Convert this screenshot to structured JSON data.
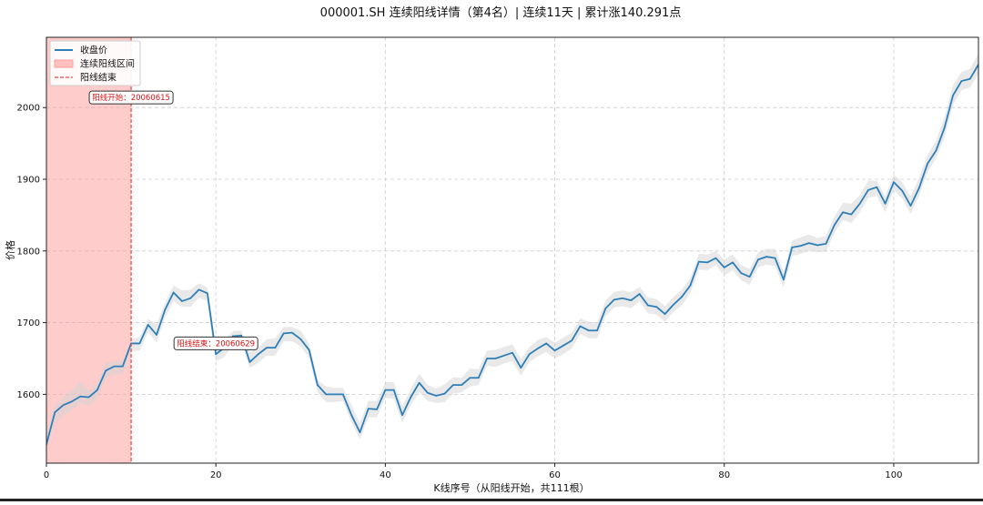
{
  "chart_data": {
    "type": "line",
    "title": "000001.SH 连续阳线详情（第4名）| 连续11天 | 累计涨140.291点",
    "xlabel": "K线序号（从阳线开始，共111根）",
    "ylabel": "价格",
    "xlim": [
      0,
      110
    ],
    "ylim": [
      1504,
      2098
    ],
    "xticks": [
      0,
      20,
      40,
      60,
      80,
      100
    ],
    "yticks": [
      1600,
      1700,
      1800,
      1900,
      2000
    ],
    "grid": true,
    "legend_position": "upper-left",
    "legend": [
      {
        "label": "收盘价",
        "kind": "line"
      },
      {
        "label": "连续阳线区间",
        "kind": "patch"
      },
      {
        "label": "阳线结束",
        "kind": "dashed"
      }
    ],
    "colors": {
      "close_line": "#2e7fb8",
      "band_fill": "#d3d3d3",
      "highlight_fill": "#ff9a9a",
      "end_line": "#ef4444",
      "annotation_text": "#dd1111"
    },
    "highlight_range": [
      0,
      10
    ],
    "end_marker_x": 10,
    "annotations": [
      {
        "text": "阳线开始：20060615",
        "x": 10,
        "y": 2014
      },
      {
        "text": "阳线结束：20060629",
        "x": 20,
        "y": 1671
      }
    ],
    "series": [
      {
        "name": "收盘价",
        "values": [
          1530,
          1575,
          1585,
          1590,
          1597,
          1596,
          1606,
          1633,
          1639,
          1639,
          1671,
          1671,
          1697,
          1683,
          1718,
          1742,
          1730,
          1734,
          1746,
          1741,
          1656,
          1665,
          1681,
          1682,
          1645,
          1656,
          1665,
          1665,
          1685,
          1686,
          1677,
          1662,
          1613,
          1600,
          1600,
          1600,
          1571,
          1547,
          1580,
          1579,
          1606,
          1606,
          1571,
          1596,
          1616,
          1602,
          1598,
          1601,
          1613,
          1613,
          1623,
          1623,
          1650,
          1650,
          1654,
          1658,
          1637,
          1656,
          1664,
          1671,
          1661,
          1668,
          1675,
          1695,
          1689,
          1689,
          1720,
          1732,
          1734,
          1731,
          1740,
          1724,
          1722,
          1712,
          1725,
          1736,
          1752,
          1785,
          1784,
          1790,
          1777,
          1784,
          1769,
          1764,
          1788,
          1792,
          1790,
          1760,
          1805,
          1807,
          1811,
          1808,
          1810,
          1836,
          1854,
          1851,
          1866,
          1885,
          1889,
          1866,
          1896,
          1884,
          1863,
          1888,
          1922,
          1940,
          1972,
          2017,
          2037,
          2040,
          2060
        ]
      }
    ],
    "band": {
      "upper": [
        1545,
        1583,
        1597,
        1606,
        1618,
        1606,
        1615,
        1644,
        1646,
        1647,
        1676,
        1680,
        1705,
        1698,
        1727,
        1752,
        1745,
        1746,
        1755,
        1749,
        1669,
        1676,
        1688,
        1689,
        1659,
        1665,
        1677,
        1678,
        1694,
        1694,
        1689,
        1671,
        1620,
        1611,
        1609,
        1609,
        1585,
        1560,
        1591,
        1591,
        1617,
        1617,
        1584,
        1607,
        1629,
        1613,
        1608,
        1614,
        1624,
        1623,
        1636,
        1635,
        1661,
        1662,
        1666,
        1670,
        1649,
        1666,
        1676,
        1680,
        1672,
        1679,
        1686,
        1706,
        1701,
        1700,
        1731,
        1743,
        1745,
        1742,
        1750,
        1735,
        1733,
        1723,
        1736,
        1746,
        1762,
        1796,
        1795,
        1800,
        1788,
        1795,
        1780,
        1775,
        1798,
        1803,
        1803,
        1771,
        1814,
        1819,
        1823,
        1818,
        1821,
        1848,
        1867,
        1866,
        1878,
        1898,
        1898,
        1876,
        1907,
        1896,
        1876,
        1902,
        1934,
        1954,
        1987,
        2031,
        2050,
        2054,
        2075
      ],
      "lower": [
        1526,
        1560,
        1571,
        1578,
        1587,
        1584,
        1594,
        1623,
        1628,
        1628,
        1660,
        1661,
        1687,
        1672,
        1707,
        1730,
        1722,
        1722,
        1735,
        1730,
        1646,
        1652,
        1669,
        1671,
        1637,
        1644,
        1654,
        1654,
        1674,
        1674,
        1667,
        1651,
        1603,
        1589,
        1589,
        1591,
        1561,
        1537,
        1568,
        1568,
        1595,
        1594,
        1560,
        1585,
        1603,
        1591,
        1588,
        1589,
        1601,
        1603,
        1611,
        1613,
        1640,
        1638,
        1643,
        1646,
        1626,
        1645,
        1653,
        1659,
        1650,
        1656,
        1664,
        1684,
        1678,
        1678,
        1709,
        1721,
        1723,
        1720,
        1730,
        1713,
        1711,
        1701,
        1715,
        1724,
        1741,
        1774,
        1773,
        1780,
        1766,
        1773,
        1759,
        1753,
        1777,
        1781,
        1779,
        1749,
        1793,
        1796,
        1800,
        1798,
        1799,
        1825,
        1843,
        1839,
        1854,
        1874,
        1877,
        1854,
        1885,
        1873,
        1852,
        1877,
        1910,
        1929,
        1959,
        2004,
        2024,
        2028,
        2047
      ]
    }
  }
}
